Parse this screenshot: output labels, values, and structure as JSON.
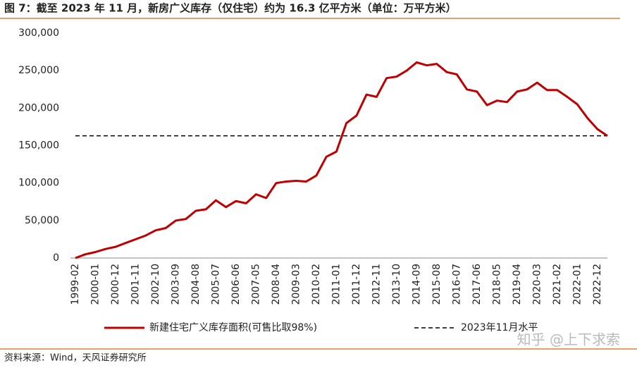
{
  "chart_data": {
    "type": "line",
    "title": "图 7：截至 2023 年 11 月，新房广义库存（仅住宅）约为 16.3 亿平方米（单位：万平方米）",
    "source": "资料来源：Wind，天风证券研究所",
    "watermark": "知乎 @上下求索",
    "categories": [
      "1999-02",
      null,
      "2000-01",
      null,
      "2000-12",
      null,
      "2001-11",
      null,
      "2002-10",
      null,
      "2003-09",
      null,
      "2004-08",
      null,
      "2005-07",
      null,
      "2006-06",
      null,
      "2007-05",
      null,
      "2008-04",
      null,
      "2009-03",
      null,
      "2010-02",
      null,
      "2011-01",
      null,
      "2011-12",
      null,
      "2012-11",
      null,
      "2013-10",
      null,
      "2014-09",
      null,
      "2015-08",
      null,
      "2016-07",
      null,
      "2017-06",
      null,
      "2018-05",
      null,
      "2019-04",
      null,
      "2020-03",
      null,
      "2021-02",
      null,
      "2022-01",
      null,
      "2022-12",
      null
    ],
    "series": [
      {
        "name": "新建住宅广义库存面积(可售比取98%)",
        "color": "#c00000",
        "values": [
          0,
          5000,
          8000,
          12000,
          15000,
          20000,
          25000,
          30000,
          37000,
          40000,
          50000,
          52000,
          63000,
          65000,
          77000,
          68000,
          76000,
          73000,
          85000,
          80000,
          100000,
          102000,
          103000,
          102000,
          110000,
          135000,
          142000,
          180000,
          190000,
          218000,
          215000,
          240000,
          242000,
          250000,
          261000,
          257000,
          259000,
          248000,
          245000,
          225000,
          222000,
          204000,
          210000,
          208000,
          222000,
          225000,
          234000,
          224000,
          224000,
          215000,
          205000,
          187000,
          172000,
          163000
        ]
      }
    ],
    "reference_lines": [
      {
        "name": "2023年11月水平",
        "value": 163000,
        "color": "#000000"
      }
    ],
    "ylim": [
      0,
      300000
    ],
    "yticks": [
      0,
      {
        "value": 50000,
        "label": "50,000"
      },
      {
        "value": 100000,
        "label": "100,000"
      },
      {
        "value": 150000,
        "label": "150,000"
      },
      {
        "value": 200000,
        "label": "200,000"
      },
      {
        "value": 250000,
        "label": "250,000"
      },
      {
        "value": 300000,
        "label": "300,000"
      }
    ],
    "grid": false,
    "accent_color": "#e0803a"
  }
}
